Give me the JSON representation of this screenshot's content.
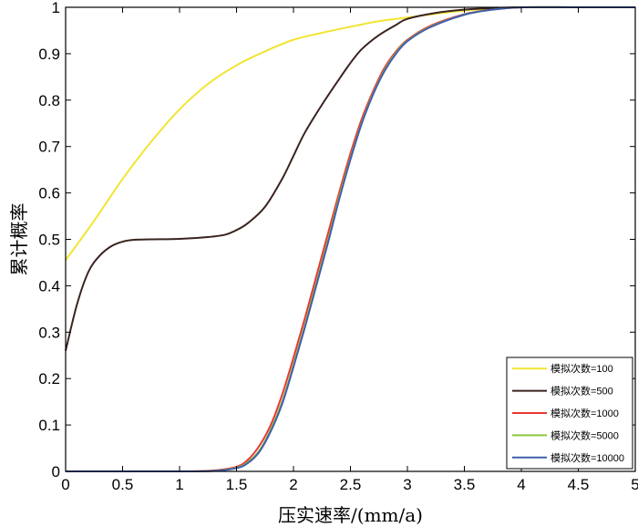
{
  "chart_data": {
    "type": "line",
    "xlabel": "压实速率/(mm/a)",
    "ylabel": "累计概率",
    "xlim": [
      0,
      5
    ],
    "ylim": [
      0,
      1
    ],
    "x_ticks": [
      "0",
      "0.5",
      "1",
      "1.5",
      "2",
      "2.5",
      "3",
      "3.5",
      "4",
      "4.5",
      "5"
    ],
    "y_ticks": [
      "0",
      "0.1",
      "0.2",
      "0.3",
      "0.4",
      "0.5",
      "0.6",
      "0.7",
      "0.8",
      "0.9",
      "1"
    ],
    "grid": false,
    "legend_position": "bottom-right",
    "series": [
      {
        "name": "模拟次数=100",
        "color": "#f2e432",
        "x": [
          0,
          0.25,
          0.5,
          0.75,
          1,
          1.25,
          1.5,
          1.75,
          2,
          2.25,
          2.5,
          2.75,
          3,
          3.25,
          3.5,
          3.75,
          4,
          4.5,
          5
        ],
        "y": [
          0.455,
          0.54,
          0.63,
          0.71,
          0.78,
          0.835,
          0.875,
          0.905,
          0.93,
          0.945,
          0.958,
          0.97,
          0.978,
          0.986,
          0.993,
          0.997,
          1.0,
          1.0,
          1.0
        ]
      },
      {
        "name": "模拟次数=500",
        "color": "#3a2420",
        "x": [
          0,
          0.1,
          0.2,
          0.3,
          0.4,
          0.5,
          0.6,
          0.75,
          1,
          1.25,
          1.4,
          1.5,
          1.6,
          1.75,
          1.9,
          2,
          2.1,
          2.25,
          2.4,
          2.5,
          2.6,
          2.75,
          2.9,
          3,
          3.25,
          3.5,
          3.75,
          4,
          4.5,
          5
        ],
        "y": [
          0.26,
          0.36,
          0.43,
          0.465,
          0.485,
          0.495,
          0.499,
          0.5,
          0.501,
          0.505,
          0.51,
          0.52,
          0.535,
          0.57,
          0.63,
          0.68,
          0.73,
          0.79,
          0.845,
          0.88,
          0.91,
          0.94,
          0.962,
          0.975,
          0.988,
          0.995,
          0.998,
          1.0,
          1.0,
          1.0
        ]
      },
      {
        "name": "模拟次数=1000",
        "color": "#e8392f",
        "x": [
          0,
          0.5,
          1,
          1.3,
          1.5,
          1.6,
          1.7,
          1.8,
          1.9,
          2,
          2.1,
          2.2,
          2.3,
          2.4,
          2.5,
          2.6,
          2.7,
          2.8,
          2.9,
          3,
          3.2,
          3.5,
          3.75,
          4,
          4.5,
          5
        ],
        "y": [
          0,
          0,
          0,
          0.002,
          0.01,
          0.025,
          0.055,
          0.1,
          0.165,
          0.245,
          0.33,
          0.42,
          0.51,
          0.6,
          0.685,
          0.76,
          0.82,
          0.87,
          0.905,
          0.93,
          0.96,
          0.985,
          0.995,
          1.0,
          1.0,
          1.0
        ]
      },
      {
        "name": "模拟次数=5000",
        "color": "#8cc63f",
        "x": [
          0,
          0.5,
          1,
          1.3,
          1.5,
          1.6,
          1.7,
          1.8,
          1.9,
          2,
          2.1,
          2.2,
          2.3,
          2.4,
          2.5,
          2.6,
          2.7,
          2.8,
          2.9,
          3,
          3.2,
          3.5,
          3.75,
          4,
          4.5,
          5
        ],
        "y": [
          0,
          0,
          0,
          0.001,
          0.008,
          0.02,
          0.045,
          0.09,
          0.15,
          0.23,
          0.315,
          0.405,
          0.495,
          0.59,
          0.675,
          0.752,
          0.815,
          0.865,
          0.902,
          0.928,
          0.958,
          0.984,
          0.995,
          1.0,
          1.0,
          1.0
        ]
      },
      {
        "name": "模拟次数=10000",
        "color": "#3f5fae",
        "x": [
          0,
          0.5,
          1,
          1.3,
          1.5,
          1.6,
          1.7,
          1.8,
          1.9,
          2,
          2.1,
          2.2,
          2.3,
          2.4,
          2.5,
          2.6,
          2.7,
          2.8,
          2.9,
          3,
          3.2,
          3.5,
          3.75,
          4,
          4.5,
          5
        ],
        "y": [
          0,
          0,
          0,
          0.001,
          0.007,
          0.018,
          0.042,
          0.086,
          0.145,
          0.225,
          0.31,
          0.4,
          0.49,
          0.585,
          0.672,
          0.75,
          0.813,
          0.863,
          0.9,
          0.927,
          0.957,
          0.984,
          0.995,
          1.0,
          1.0,
          1.0
        ]
      }
    ]
  }
}
